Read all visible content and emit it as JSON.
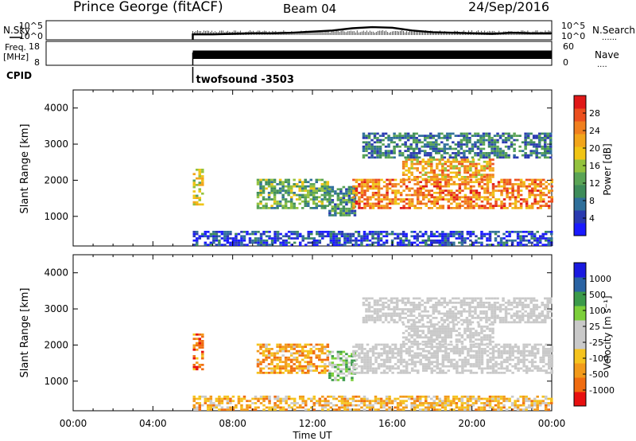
{
  "header": {
    "site": "Prince George (fitACF)",
    "beam": "Beam 04",
    "date": "24/Sep/2016"
  },
  "colors": {
    "power_scale": [
      "#1a1aff",
      "#2a3ab0",
      "#2f6f9a",
      "#3e8c5a",
      "#5aa455",
      "#93c23e",
      "#f0c414",
      "#f2a51a",
      "#f07f1e",
      "#ec4f1e",
      "#e01818"
    ],
    "velocity_scale": [
      "#e81010",
      "#f06c10",
      "#f29a1a",
      "#f5c31e",
      "#c9c9c9",
      "#c9c9c9",
      "#7ccf3a",
      "#3b9a4a",
      "#2a63a3",
      "#1a1ae0"
    ],
    "ground_scatter": "#c9c9c9"
  },
  "chart_data": [
    {
      "type": "line",
      "panel": "noise",
      "left_label": "N.Sky",
      "right_label": "N.Search",
      "left_ticks": [
        "10^5",
        "10^0"
      ],
      "right_ticks": [
        "10^5",
        "10^0"
      ],
      "x_start_hour": 6.0,
      "series": [
        {
          "x": [
            6,
            7,
            8,
            9,
            10,
            11,
            12,
            13,
            14,
            15,
            16,
            17,
            18,
            19,
            20,
            21,
            22,
            23,
            24
          ],
          "y": [
            0.2,
            0.2,
            0.25,
            0.3,
            0.3,
            0.35,
            0.45,
            0.55,
            0.75,
            0.85,
            0.8,
            0.55,
            0.4,
            0.35,
            0.3,
            0.25,
            0.35,
            0.3,
            0.3
          ]
        }
      ]
    },
    {
      "type": "bar",
      "panel": "frequency",
      "left_label": "Freq.",
      "left_unit": "[MHz]",
      "right_label": "Nave",
      "left_ticks": [
        "18",
        "8"
      ],
      "right_ticks": [
        "60",
        "0"
      ],
      "x_start_hour": 6.0,
      "values_frac": 0.78
    },
    {
      "type": "table",
      "panel": "cpid",
      "label": "CPID",
      "program": "twofsound -3503",
      "x_start_hour": 6.0
    },
    {
      "type": "heatmap",
      "panel": "power",
      "ylabel": "Slant Range [km]",
      "colorbar_label": "Power [dB]",
      "colorbar_ticks": [
        28,
        24,
        20,
        16,
        12,
        8,
        4
      ],
      "ylim": [
        180,
        4500
      ],
      "yticks": [
        1000,
        2000,
        3000,
        4000
      ],
      "regions": [
        {
          "t0": 6.0,
          "t1": 6.5,
          "r0": 1300,
          "r1": 2300,
          "lvl": 0.6
        },
        {
          "t0": 6.0,
          "t1": 24.0,
          "r0": 180,
          "r1": 600,
          "lvl": 0.15
        },
        {
          "t0": 9.2,
          "t1": 12.8,
          "r0": 1200,
          "r1": 2000,
          "lvl": 0.45
        },
        {
          "t0": 12.8,
          "t1": 14.2,
          "r0": 1000,
          "r1": 1800,
          "lvl": 0.35
        },
        {
          "t0": 14.0,
          "t1": 24.0,
          "r0": 1200,
          "r1": 2000,
          "lvl": 0.85
        },
        {
          "t0": 16.5,
          "t1": 21.0,
          "r0": 2000,
          "r1": 2600,
          "lvl": 0.75
        },
        {
          "t0": 14.5,
          "t1": 24.0,
          "r0": 2600,
          "r1": 3300,
          "lvl": 0.3
        }
      ]
    },
    {
      "type": "heatmap",
      "panel": "velocity",
      "ylabel": "Slant Range [km]",
      "colorbar_label": "Velocity [m s⁻¹]",
      "colorbar_ticks": [
        1000,
        500,
        100,
        25,
        -25,
        -100,
        -500,
        -1000
      ],
      "ylim": [
        180,
        4500
      ],
      "yticks": [
        1000,
        2000,
        3000,
        4000
      ],
      "xlabel": "Time UT",
      "xlim": [
        0,
        24
      ],
      "xticks": [
        "00:00",
        "04:00",
        "08:00",
        "12:00",
        "16:00",
        "20:00",
        "00:00"
      ],
      "regions": [
        {
          "t0": 6.0,
          "t1": 6.5,
          "r0": 1300,
          "r1": 2300,
          "lvl": 0.2,
          "gs": false
        },
        {
          "t0": 6.0,
          "t1": 24.0,
          "r0": 180,
          "r1": 600,
          "lvl": 0.35,
          "gs": false
        },
        {
          "t0": 9.2,
          "t1": 12.8,
          "r0": 1200,
          "r1": 2000,
          "lvl": 0.3,
          "gs": false
        },
        {
          "t0": 12.8,
          "t1": 14.2,
          "r0": 1000,
          "r1": 1800,
          "lvl": 0.7,
          "gs": false
        },
        {
          "t0": 14.0,
          "t1": 24.0,
          "r0": 1200,
          "r1": 2000,
          "lvl": 0.5,
          "gs": true
        },
        {
          "t0": 16.5,
          "t1": 21.0,
          "r0": 2000,
          "r1": 2600,
          "lvl": 0.5,
          "gs": true
        },
        {
          "t0": 14.5,
          "t1": 24.0,
          "r0": 2600,
          "r1": 3300,
          "lvl": 0.5,
          "gs": true
        }
      ]
    }
  ]
}
